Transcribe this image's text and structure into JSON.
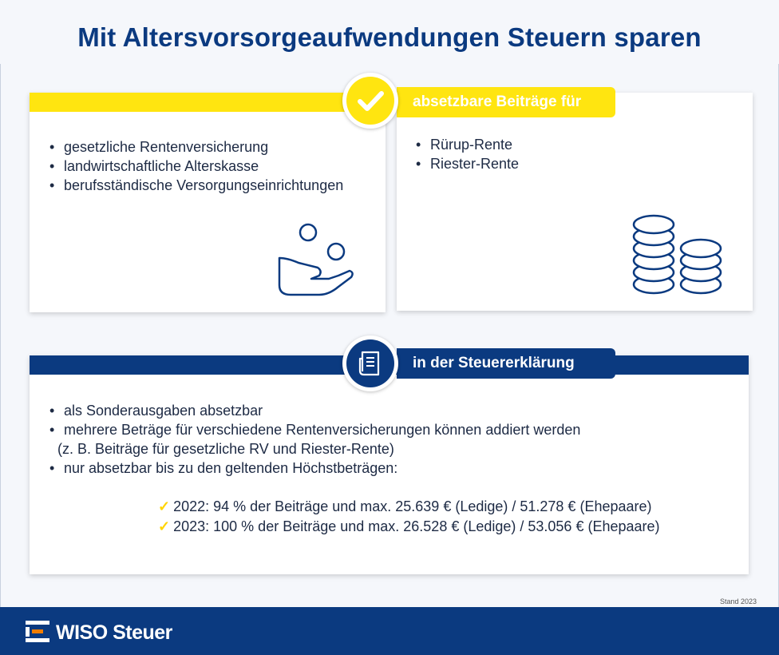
{
  "title": "Mit Altersvorsorgeaufwendungen Steuern sparen",
  "section1": {
    "label": "absetzbare Beiträge für",
    "left_items": [
      "gesetzliche Rentenversicherung",
      "landwirtschaftliche Alterskasse",
      "berufsständische Versorgungseinrichtungen"
    ],
    "right_items": [
      "Rürup-Rente",
      "Riester-Rente"
    ],
    "badge_icon": "checkmark-icon",
    "left_icon": "hand-coins-icon",
    "right_icon": "coin-stacks-icon"
  },
  "section2": {
    "label": "in der Steuererklärung",
    "badge_icon": "document-icon",
    "items": [
      "als Sonderausgaben absetzbar",
      "mehrere Beträge für verschiedene Rentenversicherungen können addiert werden"
    ],
    "sub_note": "(z. B. Beiträge für gesetzliche RV und Riester-Rente)",
    "item3": "nur absetzbar bis zu den geltenden Höchstbeträgen:",
    "checks": [
      "2022: 94 % der Beiträge und max. 25.639 €  (Ledige) / 51.278 € (Ehepaare)",
      "2023: 100 % der Beiträge und max. 26.528 € (Ledige) / 53.056 € (Ehepaare)"
    ]
  },
  "stand": "Stand 2023",
  "logo": {
    "text": "WISO Steuer",
    "icon": "wiso-logo-icon"
  },
  "colors": {
    "navy": "#0b3a80",
    "yellow": "#ffe510",
    "background": "#f5f7fb"
  }
}
